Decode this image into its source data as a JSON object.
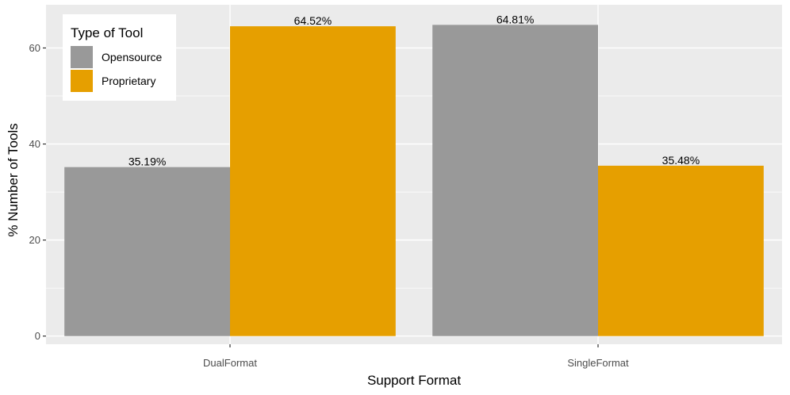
{
  "chart_data": {
    "type": "bar",
    "categories": [
      "DualFormat",
      "SingleFormat"
    ],
    "series": [
      {
        "name": "Opensource",
        "values": [
          35.19,
          64.81
        ],
        "labels": [
          "35.19%",
          "64.81%"
        ],
        "color": "#999999"
      },
      {
        "name": "Proprietary",
        "values": [
          64.52,
          35.48
        ],
        "labels": [
          "64.52%",
          "35.48%"
        ],
        "color": "#E69F00"
      }
    ],
    "xlabel": "Support Format",
    "ylabel": "% Number of Tools",
    "ylim": [
      -1.7,
      69.0
    ],
    "yticks": [
      0,
      20,
      40,
      60
    ],
    "yticklabels": [
      "0",
      "20",
      "40",
      "60"
    ],
    "grid": true,
    "legend": {
      "title": "Type of Tool",
      "position": "top-left"
    },
    "colors": {
      "panel": "#EBEBEB",
      "grid": "#FFFFFF"
    }
  }
}
